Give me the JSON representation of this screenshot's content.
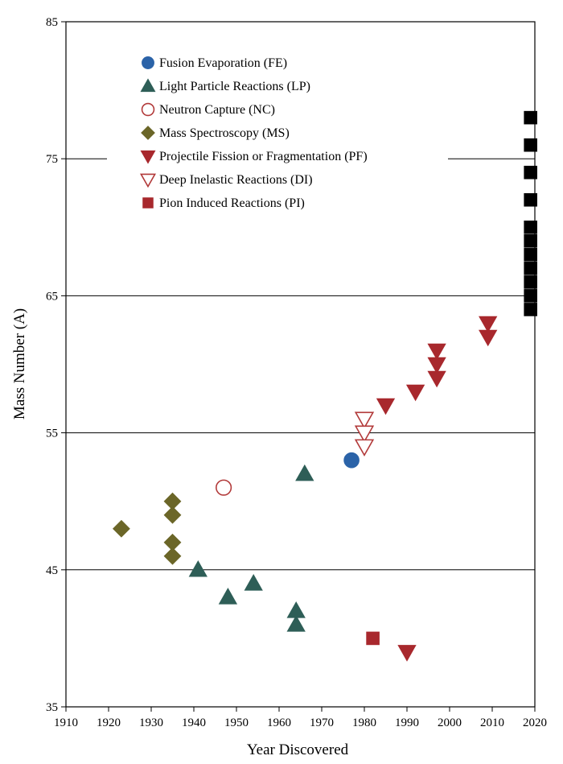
{
  "chart_data": {
    "type": "scatter",
    "title": "",
    "xlabel": "Year Discovered",
    "ylabel": "Mass Number (A)",
    "xlim": [
      1910,
      2020
    ],
    "ylim": [
      35,
      85
    ],
    "x_ticks": [
      1910,
      1920,
      1930,
      1940,
      1950,
      1960,
      1970,
      1980,
      1990,
      2000,
      2010,
      2020
    ],
    "y_ticks": [
      35,
      45,
      55,
      65,
      75,
      85
    ],
    "gridlines_y": [
      45,
      55,
      65,
      75
    ],
    "legend_position": "top-left",
    "series": [
      {
        "name": "Fusion Evaporation (FE)",
        "marker": "circle",
        "filled": true,
        "color": "#2b63a8",
        "points": [
          [
            1977,
            53
          ]
        ]
      },
      {
        "name": "Light Particle Reactions (LP)",
        "marker": "triangle-up",
        "filled": true,
        "color": "#2e5e57",
        "points": [
          [
            1941,
            45
          ],
          [
            1948,
            43
          ],
          [
            1954,
            44
          ],
          [
            1964,
            42
          ],
          [
            1964,
            41
          ],
          [
            1966,
            52
          ]
        ]
      },
      {
        "name": "Neutron Capture (NC)",
        "marker": "circle",
        "filled": false,
        "color": "#b23a3a",
        "points": [
          [
            1947,
            51
          ]
        ]
      },
      {
        "name": "Mass Spectroscopy (MS)",
        "marker": "diamond",
        "filled": true,
        "color": "#6b6628",
        "points": [
          [
            1923,
            48
          ],
          [
            1935,
            50
          ],
          [
            1935,
            49
          ],
          [
            1935,
            47
          ],
          [
            1935,
            46
          ]
        ]
      },
      {
        "name": "Projectile Fission or Fragmentation (PF)",
        "marker": "triangle-down",
        "filled": true,
        "color": "#a8282d",
        "points": [
          [
            1985,
            57
          ],
          [
            1990,
            39
          ],
          [
            1992,
            58
          ],
          [
            1997,
            61
          ],
          [
            1997,
            60
          ],
          [
            1997,
            59
          ],
          [
            2009,
            63
          ],
          [
            2009,
            62
          ]
        ]
      },
      {
        "name": "Deep Inelastic Reactions (DI)",
        "marker": "triangle-down",
        "filled": false,
        "color": "#b23a3a",
        "points": [
          [
            1980,
            56
          ],
          [
            1980,
            55
          ],
          [
            1980,
            54
          ]
        ]
      },
      {
        "name": "Pion Induced Reactions (PI)",
        "marker": "square",
        "filled": true,
        "color": "#a8282d",
        "points": [
          [
            1982,
            40
          ]
        ]
      },
      {
        "name": "",
        "marker": "square",
        "filled": true,
        "color": "#000000",
        "points": [
          [
            2019,
            78
          ],
          [
            2019,
            76
          ],
          [
            2019,
            74
          ],
          [
            2019,
            72
          ],
          [
            2019,
            70
          ],
          [
            2019,
            69
          ],
          [
            2019,
            68
          ],
          [
            2019,
            67
          ],
          [
            2019,
            66
          ],
          [
            2019,
            65
          ],
          [
            2019,
            64
          ]
        ]
      }
    ]
  }
}
